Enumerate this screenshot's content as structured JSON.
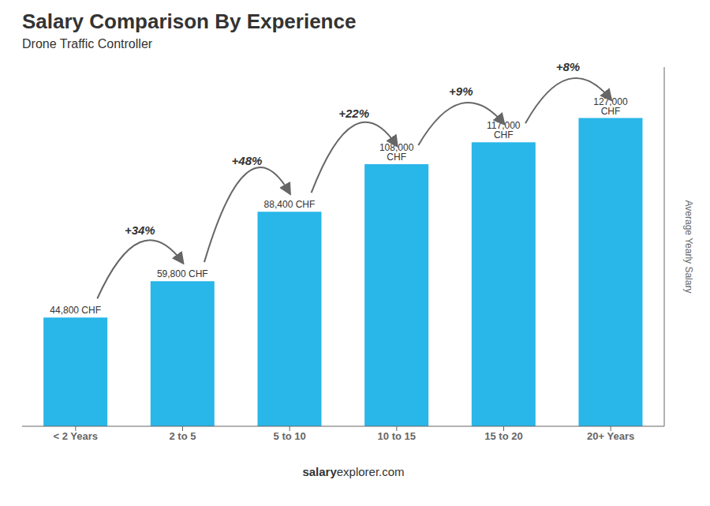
{
  "chart_data": {
    "type": "bar",
    "title": "Salary Comparison By Experience",
    "subtitle": "Drone Traffic Controller",
    "categories": [
      "< 2 Years",
      "2 to 5",
      "5 to 10",
      "10 to 15",
      "15 to 20",
      "20+ Years"
    ],
    "values": [
      44800,
      59800,
      88400,
      108000,
      117000,
      127000
    ],
    "value_labels": [
      "44,800 CHF",
      "59,800 CHF",
      "88,400 CHF",
      "108,000 CHF",
      "117,000 CHF",
      "127,000 CHF"
    ],
    "data_labels": true,
    "annotations": [
      "+34%",
      "+48%",
      "+22%",
      "+9%",
      "+8%"
    ],
    "color": "#29B6E8",
    "ylabel": "Average Yearly Salary",
    "watermark": [
      "salary",
      "explorer.com"
    ],
    "ylim": [
      0,
      148000
    ],
    "yticks": [],
    "tick_labels": "x",
    "grid": false
  }
}
